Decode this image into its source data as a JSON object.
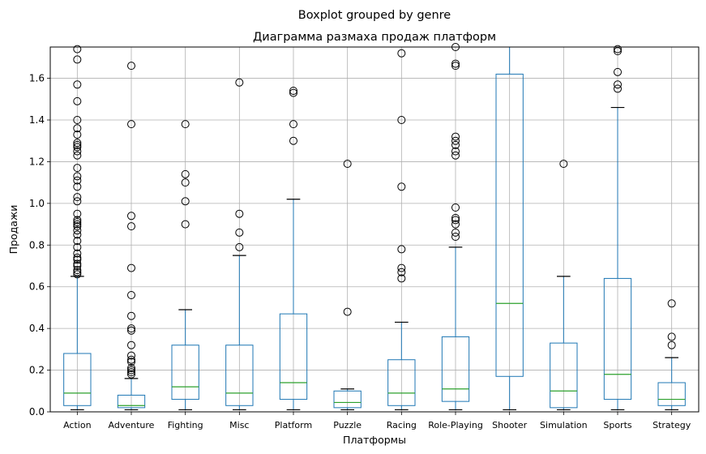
{
  "chart_data": {
    "type": "boxplot",
    "suptitle": "Boxplot grouped by genre",
    "title": "Диаграмма размаха продаж платформ",
    "xlabel": "Платформы",
    "ylabel": "Продажи",
    "ylim": [
      0,
      1.75
    ],
    "yticks": [
      "0.0",
      "0.2",
      "0.4",
      "0.6",
      "0.8",
      "1.0",
      "1.2",
      "1.4",
      "1.6"
    ],
    "grid": true,
    "categories": [
      "Action",
      "Adventure",
      "Fighting",
      "Misc",
      "Platform",
      "Puzzle",
      "Racing",
      "Role-Playing",
      "Shooter",
      "Simulation",
      "Sports",
      "Strategy"
    ],
    "boxes": [
      {
        "min": 0.01,
        "q1": 0.03,
        "median": 0.09,
        "q3": 0.28,
        "max": 0.65,
        "fliers": [
          0.66,
          0.67,
          0.68,
          0.7,
          0.71,
          0.73,
          0.74,
          0.76,
          0.79,
          0.82,
          0.85,
          0.87,
          0.89,
          0.9,
          0.91,
          0.92,
          0.95,
          1.01,
          1.03,
          1.08,
          1.11,
          1.13,
          1.17,
          1.23,
          1.25,
          1.27,
          1.28,
          1.29,
          1.33,
          1.36,
          1.4,
          1.49,
          1.57,
          1.69,
          1.74
        ]
      },
      {
        "min": 0.01,
        "q1": 0.02,
        "median": 0.03,
        "q3": 0.08,
        "max": 0.16,
        "fliers": [
          0.18,
          0.19,
          0.2,
          0.21,
          0.24,
          0.25,
          0.27,
          0.32,
          0.39,
          0.4,
          0.46,
          0.56,
          0.69,
          0.89,
          0.94,
          1.38,
          1.66
        ]
      },
      {
        "min": 0.01,
        "q1": 0.06,
        "median": 0.12,
        "q3": 0.32,
        "max": 0.49,
        "fliers": [
          0.9,
          1.01,
          1.1,
          1.14,
          1.38
        ]
      },
      {
        "min": 0.01,
        "q1": 0.03,
        "median": 0.09,
        "q3": 0.32,
        "max": 0.75,
        "fliers": [
          0.79,
          0.86,
          0.95,
          1.58
        ]
      },
      {
        "min": 0.01,
        "q1": 0.06,
        "median": 0.14,
        "q3": 0.47,
        "max": 1.02,
        "fliers": [
          1.3,
          1.38,
          1.53,
          1.54
        ]
      },
      {
        "min": 0.01,
        "q1": 0.02,
        "median": 0.045,
        "q3": 0.1,
        "max": 0.11,
        "fliers": [
          0.48,
          1.19
        ]
      },
      {
        "min": 0.01,
        "q1": 0.03,
        "median": 0.09,
        "q3": 0.25,
        "max": 0.43,
        "fliers": [
          0.64,
          0.67,
          0.69,
          0.78,
          1.08,
          1.4,
          1.72
        ]
      },
      {
        "min": 0.01,
        "q1": 0.05,
        "median": 0.11,
        "q3": 0.36,
        "max": 0.79,
        "fliers": [
          0.84,
          0.86,
          0.9,
          0.92,
          0.93,
          0.98,
          1.23,
          1.25,
          1.28,
          1.3,
          1.32,
          1.66,
          1.67,
          1.75
        ]
      },
      {
        "min": 0.01,
        "q1": 0.17,
        "median": 0.52,
        "q3": 1.62,
        "max": 1.75,
        "fliers": []
      },
      {
        "min": 0.01,
        "q1": 0.02,
        "median": 0.1,
        "q3": 0.33,
        "max": 0.65,
        "fliers": [
          1.19
        ]
      },
      {
        "min": 0.01,
        "q1": 0.06,
        "median": 0.18,
        "q3": 0.64,
        "max": 1.46,
        "fliers": [
          1.55,
          1.57,
          1.63,
          1.73,
          1.74
        ]
      },
      {
        "min": 0.01,
        "q1": 0.03,
        "median": 0.06,
        "q3": 0.14,
        "max": 0.26,
        "fliers": [
          0.32,
          0.36,
          0.52
        ]
      }
    ]
  }
}
